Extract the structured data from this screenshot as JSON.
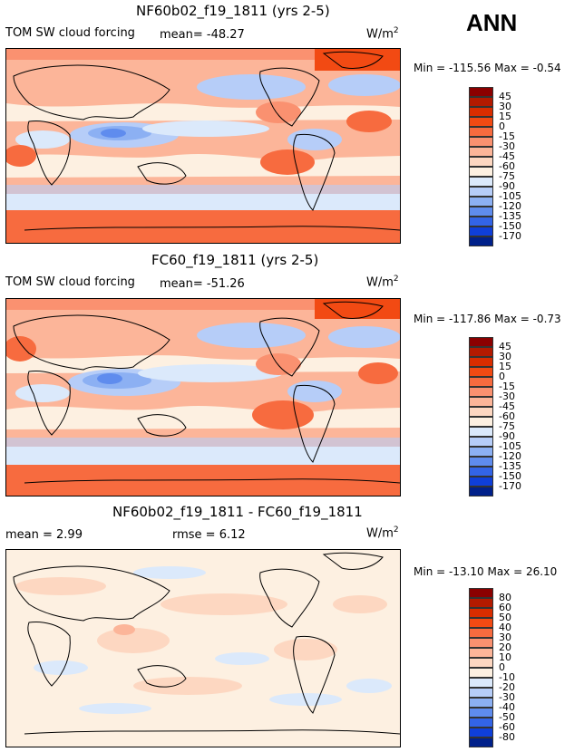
{
  "season": "ANN",
  "panels": [
    {
      "title": "NF60b02_f19_1811 (yrs 2-5)",
      "field_label": "TOM SW cloud forcing",
      "stat1": "mean= -48.27",
      "stat2": "",
      "units": "W/m",
      "units_exp": "2",
      "minmax": "Min = -115.56 Max =  -0.54",
      "legend_levels": [
        "45",
        "30",
        "15",
        "0",
        "-15",
        "-30",
        "-45",
        "-60",
        "-75",
        "-90",
        "-105",
        "-120",
        "-135",
        "-150",
        "-170"
      ],
      "legend_colors": [
        "#8b0000",
        "#b31a00",
        "#d92d00",
        "#f24a13",
        "#f76b3f",
        "#fa9170",
        "#fcb599",
        "#fdd7c1",
        "#fdf0e1",
        "#dbe9fb",
        "#b6cdf8",
        "#8cb0f3",
        "#5f8cee",
        "#3364e6",
        "#0f3fd9",
        "#00208a"
      ]
    },
    {
      "title": "FC60_f19_1811 (yrs 2-5)",
      "field_label": "TOM SW cloud forcing",
      "stat1": "mean= -51.26",
      "stat2": "",
      "units": "W/m",
      "units_exp": "2",
      "minmax": "Min = -117.86 Max =  -0.73",
      "legend_levels": [
        "45",
        "30",
        "15",
        "0",
        "-15",
        "-30",
        "-45",
        "-60",
        "-75",
        "-90",
        "-105",
        "-120",
        "-135",
        "-150",
        "-170"
      ],
      "legend_colors": [
        "#8b0000",
        "#b31a00",
        "#d92d00",
        "#f24a13",
        "#f76b3f",
        "#fa9170",
        "#fcb599",
        "#fdd7c1",
        "#fdf0e1",
        "#dbe9fb",
        "#b6cdf8",
        "#8cb0f3",
        "#5f8cee",
        "#3364e6",
        "#0f3fd9",
        "#00208a"
      ]
    },
    {
      "title": "NF60b02_f19_1811 - FC60_f19_1811",
      "field_label": "mean =   2.99",
      "stat1": "",
      "stat2": "rmse =   6.12",
      "units": "W/m",
      "units_exp": "2",
      "minmax": "Min = -13.10 Max =  26.10",
      "legend_levels": [
        "80",
        "60",
        "50",
        "40",
        "30",
        "20",
        "10",
        "0",
        "-10",
        "-20",
        "-30",
        "-40",
        "-50",
        "-60",
        "-80"
      ],
      "legend_colors": [
        "#8b0000",
        "#b31a00",
        "#d92d00",
        "#f24a13",
        "#f76b3f",
        "#fa9170",
        "#fcb599",
        "#fdd7c1",
        "#fdf0e1",
        "#dbe9fb",
        "#b6cdf8",
        "#8cb0f3",
        "#5f8cee",
        "#3364e6",
        "#0f3fd9",
        "#00208a"
      ]
    }
  ]
}
